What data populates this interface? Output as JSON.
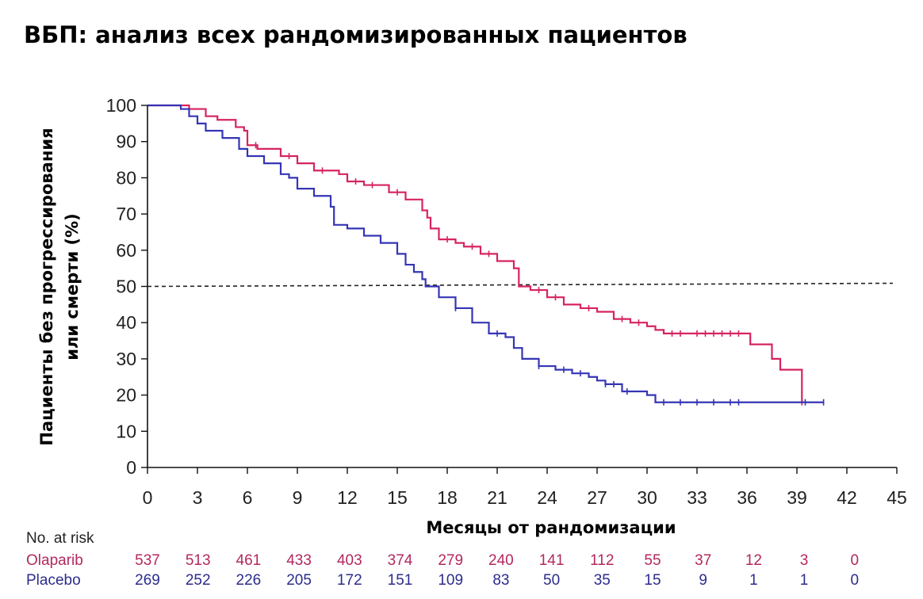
{
  "chart_data": {
    "type": "line",
    "title": "ВБП: анализ всех рандомизированных пациентов",
    "xlabel": "Месяцы от рандомизации",
    "ylabel": [
      "Пациенты без прогрессирования",
      "или смерти (%)"
    ],
    "xlim": [
      0,
      45
    ],
    "ylim": [
      0,
      100
    ],
    "xticks": [
      0,
      3,
      6,
      9,
      12,
      15,
      18,
      21,
      24,
      27,
      30,
      33,
      36,
      39,
      42,
      45
    ],
    "yticks": [
      0,
      10,
      20,
      30,
      40,
      50,
      60,
      70,
      80,
      90,
      100
    ],
    "reference_line": {
      "y": 50,
      "style": "dashed"
    },
    "series": [
      {
        "name": "Olaparib",
        "color": "#d6245f",
        "step": true,
        "points": [
          [
            0,
            100
          ],
          [
            2,
            100
          ],
          [
            2.5,
            99
          ],
          [
            3.5,
            97
          ],
          [
            4.2,
            96
          ],
          [
            5.3,
            94
          ],
          [
            5.8,
            93
          ],
          [
            6,
            89
          ],
          [
            6.6,
            88
          ],
          [
            8,
            86
          ],
          [
            9,
            84
          ],
          [
            10,
            82
          ],
          [
            11.5,
            81
          ],
          [
            12,
            79
          ],
          [
            13,
            78
          ],
          [
            14.5,
            76
          ],
          [
            15.5,
            74
          ],
          [
            16.5,
            71
          ],
          [
            16.8,
            69
          ],
          [
            17,
            66
          ],
          [
            17.5,
            63
          ],
          [
            18.5,
            62
          ],
          [
            19,
            61
          ],
          [
            20,
            59
          ],
          [
            21,
            57
          ],
          [
            22,
            55
          ],
          [
            22.3,
            50
          ],
          [
            23,
            49
          ],
          [
            24,
            47
          ],
          [
            25,
            45
          ],
          [
            26,
            44
          ],
          [
            27,
            43
          ],
          [
            28,
            41
          ],
          [
            29,
            40
          ],
          [
            30,
            39
          ],
          [
            30.5,
            38
          ],
          [
            31,
            37
          ],
          [
            33,
            37
          ],
          [
            36,
            37
          ],
          [
            36.2,
            34
          ],
          [
            37.2,
            34
          ],
          [
            37.5,
            30
          ],
          [
            38,
            27
          ],
          [
            39,
            27
          ],
          [
            39.3,
            18
          ]
        ],
        "censor_x": [
          6.5,
          8.5,
          10.5,
          12.5,
          13.5,
          15,
          18,
          19.5,
          20.5,
          23.5,
          24.5,
          26.5,
          28.5,
          29.5,
          31.5,
          32,
          33,
          33.5,
          34,
          34.5,
          35,
          35.5,
          39.3
        ]
      },
      {
        "name": "Placebo",
        "color": "#3535b5",
        "step": true,
        "points": [
          [
            0,
            100
          ],
          [
            2,
            99
          ],
          [
            2.5,
            97
          ],
          [
            3,
            95
          ],
          [
            3.5,
            93
          ],
          [
            4.5,
            91
          ],
          [
            5.5,
            88
          ],
          [
            6,
            86
          ],
          [
            7,
            84
          ],
          [
            8,
            81
          ],
          [
            8.5,
            80
          ],
          [
            9,
            77
          ],
          [
            10,
            75
          ],
          [
            11,
            72
          ],
          [
            11.2,
            67
          ],
          [
            12,
            66
          ],
          [
            13,
            64
          ],
          [
            14,
            62
          ],
          [
            15,
            59
          ],
          [
            15.5,
            56
          ],
          [
            16,
            54
          ],
          [
            16.5,
            52
          ],
          [
            16.7,
            50
          ],
          [
            17.5,
            47
          ],
          [
            18.5,
            44
          ],
          [
            19.5,
            40
          ],
          [
            20.5,
            37
          ],
          [
            21.5,
            36
          ],
          [
            22,
            33
          ],
          [
            22.5,
            30
          ],
          [
            23.5,
            28
          ],
          [
            24.5,
            27
          ],
          [
            25.5,
            26
          ],
          [
            26.5,
            25
          ],
          [
            27,
            24
          ],
          [
            27.5,
            23
          ],
          [
            28.5,
            21
          ],
          [
            29.5,
            21
          ],
          [
            30,
            20
          ],
          [
            30.5,
            18
          ],
          [
            36,
            18
          ],
          [
            40.6,
            18
          ]
        ],
        "censor_x": [
          18.5,
          21,
          23.5,
          25,
          26,
          27.5,
          28,
          28.8,
          31,
          32,
          33,
          34,
          35,
          35.5,
          39.5,
          40.6
        ]
      }
    ],
    "risk_table": {
      "header": "No. at risk",
      "rows": [
        {
          "name": "Olaparib",
          "color": "#b2285e",
          "values": [
            "537",
            "513",
            "461",
            "433",
            "403",
            "374",
            "279",
            "240",
            "141",
            "112",
            "55",
            "37",
            "12",
            "3",
            "0"
          ]
        },
        {
          "name": "Placebo",
          "color": "#2c2c8c",
          "values": [
            "269",
            "252",
            "226",
            "205",
            "172",
            "151",
            "109",
            "83",
            "50",
            "35",
            "15",
            "9",
            "1",
            "1",
            "0"
          ]
        }
      ]
    }
  }
}
